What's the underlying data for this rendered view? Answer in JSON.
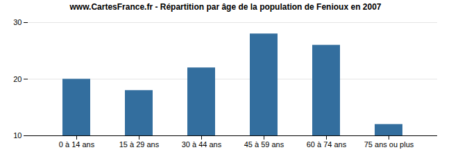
{
  "chart_data": {
    "type": "bar",
    "title": "www.CartesFrance.fr - Répartition par âge de la population de Fenioux en 2007",
    "categories": [
      "0 à 14 ans",
      "15 à 29 ans",
      "30 à 44 ans",
      "45 à 59 ans",
      "60 à 74 ans",
      "75 ans ou plus"
    ],
    "values": [
      20,
      18,
      22,
      28,
      26,
      12
    ],
    "color": "#336e9e",
    "ylim": [
      10,
      30
    ],
    "yticks": [
      10,
      20,
      30
    ],
    "grid": true
  }
}
